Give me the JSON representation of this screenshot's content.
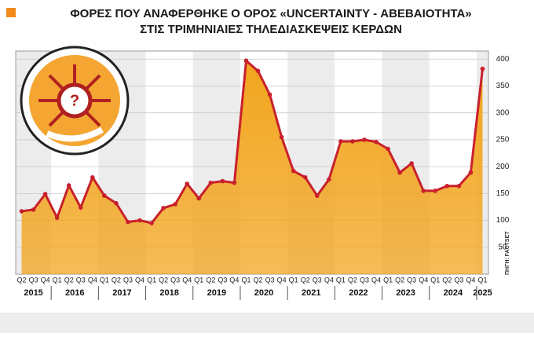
{
  "chart_data": {
    "type": "area",
    "title": "ΦΟΡΕΣ ΠΟΥ ΑΝΑΦΕΡΘΗΚΕ Ο ΟΡΟΣ «UNCERTAINTY - ΑΒΕΒΑΙΟΤΗΤΑ»",
    "subtitle": "ΣΤΙΣ ΤΡΙΜΗΝΙΑΙΕΣ ΤΗΛΕΔΙΑΣΚΕΨΕΙΣ ΚΕΡΔΩΝ",
    "source": "ΠΗΓΗ: FACTSET",
    "groups": [
      {
        "label": "2015",
        "categories": [
          "Q2",
          "Q3",
          "Q4"
        ]
      },
      {
        "label": "2016",
        "categories": [
          "Q1",
          "Q2",
          "Q3",
          "Q4"
        ]
      },
      {
        "label": "2017",
        "categories": [
          "Q1",
          "Q2",
          "Q3",
          "Q4"
        ]
      },
      {
        "label": "2018",
        "categories": [
          "Q1",
          "Q2",
          "Q3",
          "Q4"
        ]
      },
      {
        "label": "2019",
        "categories": [
          "Q1",
          "Q2",
          "Q3",
          "Q4"
        ]
      },
      {
        "label": "2020",
        "categories": [
          "Q1",
          "Q2",
          "Q3",
          "Q4"
        ]
      },
      {
        "label": "2021",
        "categories": [
          "Q1",
          "Q2",
          "Q3",
          "Q4"
        ]
      },
      {
        "label": "2022",
        "categories": [
          "Q1",
          "Q2",
          "Q3",
          "Q4"
        ]
      },
      {
        "label": "2023",
        "categories": [
          "Q1",
          "Q2",
          "Q3",
          "Q4"
        ]
      },
      {
        "label": "2024",
        "categories": [
          "Q1",
          "Q2",
          "Q3",
          "Q4"
        ]
      },
      {
        "label": "2025",
        "categories": [
          "Q1"
        ]
      }
    ],
    "values": [
      117,
      120,
      149,
      105,
      165,
      124,
      180,
      146,
      132,
      97,
      100,
      95,
      123,
      130,
      168,
      141,
      170,
      173,
      170,
      397,
      378,
      334,
      255,
      192,
      180,
      146,
      176,
      247,
      247,
      250,
      246,
      233,
      189,
      206,
      155,
      155,
      164,
      164,
      189,
      382
    ],
    "color": "#c8202c",
    "fill": "#f2a51e",
    "ylim": [
      0,
      415
    ],
    "yticks": [
      50,
      100,
      150,
      200,
      250,
      300,
      350,
      400
    ],
    "grid": true
  }
}
